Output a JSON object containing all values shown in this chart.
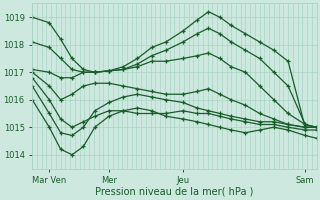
{
  "bg_color": "#cce8df",
  "plot_bg_color": "#cce8df",
  "grid_color_v": "#aad4c8",
  "grid_color_h": "#aad4c8",
  "line_color": "#1a5c2a",
  "xlabel": "Pression niveau de la mer( hPa )",
  "ylim": [
    1013.5,
    1019.5
  ],
  "xlim": [
    0,
    1
  ],
  "yticks": [
    1014,
    1015,
    1016,
    1017,
    1018,
    1019
  ],
  "xtick_positions": [
    0.06,
    0.27,
    0.53,
    0.96
  ],
  "xtick_labels": [
    "Mar Ven",
    "Mer",
    "Jeu",
    "Sam"
  ],
  "n_vgrid": 60,
  "series": [
    {
      "points": [
        [
          0.0,
          1019.0
        ],
        [
          0.06,
          1018.8
        ],
        [
          0.1,
          1018.2
        ],
        [
          0.14,
          1017.5
        ],
        [
          0.18,
          1017.1
        ],
        [
          0.22,
          1017.0
        ],
        [
          0.27,
          1017.05
        ],
        [
          0.32,
          1017.2
        ],
        [
          0.37,
          1017.5
        ],
        [
          0.42,
          1017.9
        ],
        [
          0.47,
          1018.1
        ],
        [
          0.53,
          1018.5
        ],
        [
          0.58,
          1018.9
        ],
        [
          0.62,
          1019.2
        ],
        [
          0.66,
          1019.0
        ],
        [
          0.7,
          1018.7
        ],
        [
          0.75,
          1018.4
        ],
        [
          0.8,
          1018.1
        ],
        [
          0.85,
          1017.8
        ],
        [
          0.9,
          1017.4
        ],
        [
          0.96,
          1015.0
        ],
        [
          1.0,
          1015.0
        ]
      ]
    },
    {
      "points": [
        [
          0.0,
          1018.1
        ],
        [
          0.06,
          1017.9
        ],
        [
          0.1,
          1017.5
        ],
        [
          0.14,
          1017.1
        ],
        [
          0.18,
          1017.0
        ],
        [
          0.22,
          1017.0
        ],
        [
          0.27,
          1017.05
        ],
        [
          0.32,
          1017.1
        ],
        [
          0.37,
          1017.3
        ],
        [
          0.42,
          1017.6
        ],
        [
          0.47,
          1017.8
        ],
        [
          0.53,
          1018.1
        ],
        [
          0.58,
          1018.4
        ],
        [
          0.62,
          1018.6
        ],
        [
          0.66,
          1018.4
        ],
        [
          0.7,
          1018.1
        ],
        [
          0.75,
          1017.8
        ],
        [
          0.8,
          1017.5
        ],
        [
          0.85,
          1017.0
        ],
        [
          0.9,
          1016.5
        ],
        [
          0.96,
          1015.1
        ],
        [
          1.0,
          1015.0
        ]
      ]
    },
    {
      "points": [
        [
          0.0,
          1017.1
        ],
        [
          0.06,
          1017.0
        ],
        [
          0.1,
          1016.8
        ],
        [
          0.14,
          1016.8
        ],
        [
          0.18,
          1017.0
        ],
        [
          0.22,
          1017.0
        ],
        [
          0.27,
          1017.05
        ],
        [
          0.32,
          1017.1
        ],
        [
          0.37,
          1017.2
        ],
        [
          0.42,
          1017.4
        ],
        [
          0.47,
          1017.4
        ],
        [
          0.53,
          1017.5
        ],
        [
          0.58,
          1017.6
        ],
        [
          0.62,
          1017.7
        ],
        [
          0.66,
          1017.5
        ],
        [
          0.7,
          1017.2
        ],
        [
          0.75,
          1017.0
        ],
        [
          0.8,
          1016.5
        ],
        [
          0.85,
          1016.0
        ],
        [
          0.9,
          1015.5
        ],
        [
          0.96,
          1015.1
        ],
        [
          1.0,
          1015.0
        ]
      ]
    },
    {
      "points": [
        [
          0.0,
          1017.0
        ],
        [
          0.06,
          1016.5
        ],
        [
          0.1,
          1016.0
        ],
        [
          0.14,
          1016.2
        ],
        [
          0.18,
          1016.5
        ],
        [
          0.22,
          1016.6
        ],
        [
          0.27,
          1016.6
        ],
        [
          0.32,
          1016.5
        ],
        [
          0.37,
          1016.4
        ],
        [
          0.42,
          1016.3
        ],
        [
          0.47,
          1016.2
        ],
        [
          0.53,
          1016.2
        ],
        [
          0.58,
          1016.3
        ],
        [
          0.62,
          1016.4
        ],
        [
          0.66,
          1016.2
        ],
        [
          0.7,
          1016.0
        ],
        [
          0.75,
          1015.8
        ],
        [
          0.8,
          1015.5
        ],
        [
          0.85,
          1015.3
        ],
        [
          0.9,
          1015.1
        ],
        [
          0.96,
          1015.0
        ],
        [
          1.0,
          1015.0
        ]
      ]
    },
    {
      "points": [
        [
          0.0,
          1016.8
        ],
        [
          0.06,
          1016.0
        ],
        [
          0.1,
          1015.3
        ],
        [
          0.14,
          1015.0
        ],
        [
          0.18,
          1015.2
        ],
        [
          0.22,
          1015.4
        ],
        [
          0.27,
          1015.6
        ],
        [
          0.32,
          1015.6
        ],
        [
          0.37,
          1015.5
        ],
        [
          0.42,
          1015.5
        ],
        [
          0.47,
          1015.5
        ],
        [
          0.53,
          1015.6
        ],
        [
          0.58,
          1015.5
        ],
        [
          0.62,
          1015.5
        ],
        [
          0.66,
          1015.4
        ],
        [
          0.7,
          1015.3
        ],
        [
          0.75,
          1015.2
        ],
        [
          0.8,
          1015.1
        ],
        [
          0.85,
          1015.1
        ],
        [
          0.9,
          1015.0
        ],
        [
          0.96,
          1014.9
        ],
        [
          1.0,
          1014.9
        ]
      ]
    },
    {
      "points": [
        [
          0.0,
          1016.5
        ],
        [
          0.06,
          1015.5
        ],
        [
          0.1,
          1014.8
        ],
        [
          0.14,
          1014.7
        ],
        [
          0.18,
          1015.0
        ],
        [
          0.22,
          1015.6
        ],
        [
          0.27,
          1015.9
        ],
        [
          0.32,
          1016.1
        ],
        [
          0.37,
          1016.2
        ],
        [
          0.42,
          1016.1
        ],
        [
          0.47,
          1016.0
        ],
        [
          0.53,
          1015.9
        ],
        [
          0.58,
          1015.7
        ],
        [
          0.62,
          1015.6
        ],
        [
          0.66,
          1015.5
        ],
        [
          0.7,
          1015.4
        ],
        [
          0.75,
          1015.3
        ],
        [
          0.8,
          1015.2
        ],
        [
          0.85,
          1015.2
        ],
        [
          0.9,
          1015.1
        ],
        [
          0.96,
          1015.0
        ],
        [
          1.0,
          1015.0
        ]
      ]
    },
    {
      "points": [
        [
          0.0,
          1016.0
        ],
        [
          0.06,
          1015.0
        ],
        [
          0.1,
          1014.2
        ],
        [
          0.14,
          1014.0
        ],
        [
          0.18,
          1014.3
        ],
        [
          0.22,
          1015.0
        ],
        [
          0.27,
          1015.4
        ],
        [
          0.32,
          1015.6
        ],
        [
          0.37,
          1015.7
        ],
        [
          0.42,
          1015.6
        ],
        [
          0.47,
          1015.4
        ],
        [
          0.53,
          1015.3
        ],
        [
          0.58,
          1015.2
        ],
        [
          0.62,
          1015.1
        ],
        [
          0.66,
          1015.0
        ],
        [
          0.7,
          1014.9
        ],
        [
          0.75,
          1014.8
        ],
        [
          0.8,
          1014.9
        ],
        [
          0.85,
          1015.0
        ],
        [
          0.9,
          1014.9
        ],
        [
          0.96,
          1014.7
        ],
        [
          1.0,
          1014.6
        ]
      ]
    }
  ]
}
